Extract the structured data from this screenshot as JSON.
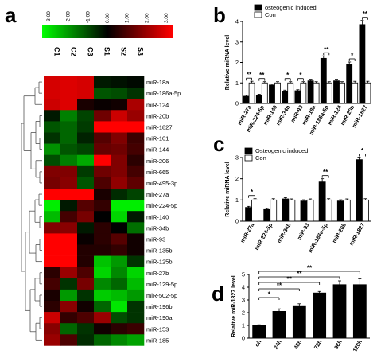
{
  "colors": {
    "low": "#00ff00",
    "mid": "#000000",
    "high": "#ff0000",
    "filled": "#000000",
    "open": "#ffffff"
  },
  "chart_data": [
    {
      "id": "a",
      "type": "heatmap",
      "panel_label": "a",
      "colorbar_ticks": [
        "-3.00",
        "-2.00",
        "-1.00",
        "0.00",
        "1.00",
        "2.00",
        "3.00"
      ],
      "columns": [
        "C1",
        "C2",
        "C3",
        "S1",
        "S2",
        "S3"
      ],
      "rows": [
        "miR-18a",
        "miR-186a-5p",
        "miR-124",
        "miR-20b",
        "miR-1827",
        "miR-101",
        "miR-144",
        "miR-206",
        "miR-665",
        "miR-495-3p",
        "miR-27a",
        "miR-224-5p",
        "miR-140",
        "miR-34b",
        "miR-93",
        "miR-135b",
        "miR-125b",
        "miR-27b",
        "miR-129-5p",
        "miR-502-5p",
        "miR-196b",
        "miR-190a",
        "miR-153",
        "miR-185"
      ],
      "values": [
        [
          2.5,
          2.6,
          2.5,
          -0.3,
          -0.2,
          -0.1
        ],
        [
          2.5,
          2.6,
          2.5,
          -1.0,
          -0.9,
          -0.6
        ],
        [
          2.4,
          2.6,
          0.3,
          0.1,
          0.2,
          2.0
        ],
        [
          -0.3,
          -1.5,
          -0.8,
          1.3,
          2.4,
          1.8
        ],
        [
          -1.0,
          -1.2,
          -0.7,
          3.0,
          3.0,
          3.0
        ],
        [
          -0.6,
          -1.2,
          -0.4,
          1.0,
          1.5,
          0.7
        ],
        [
          -1.7,
          -1.0,
          -0.8,
          1.2,
          1.3,
          0.8
        ],
        [
          -0.9,
          -1.5,
          -2.0,
          3.0,
          1.5,
          0.5
        ],
        [
          1.5,
          1.5,
          -0.7,
          1.3,
          1.5,
          0.8
        ],
        [
          1.4,
          1.6,
          -1.0,
          0.9,
          1.7,
          1.1
        ],
        [
          3.0,
          3.0,
          3.0,
          0.3,
          -0.5,
          -0.8
        ],
        [
          -2.8,
          -0.3,
          1.0,
          0.6,
          -2.8,
          -2.8
        ],
        [
          -2.2,
          0.8,
          1.4,
          0.0,
          -2.5,
          -0.3
        ],
        [
          1.5,
          1.6,
          -0.3,
          0.5,
          0.0,
          -1.3
        ],
        [
          3.0,
          3.0,
          0.1,
          0.5,
          1.0,
          0.2
        ],
        [
          3.0,
          3.0,
          0.4,
          0.4,
          0.6,
          0.2
        ],
        [
          3.0,
          3.0,
          0.4,
          -2.3,
          -1.8,
          -0.6
        ],
        [
          0.5,
          1.8,
          0.9,
          -2.5,
          -1.6,
          -2.5
        ],
        [
          0.8,
          -0.6,
          1.4,
          -1.6,
          -1.2,
          -2.2
        ],
        [
          0.3,
          -1.8,
          -0.6,
          -2.4,
          -2.2,
          -1.8
        ],
        [
          0.5,
          1.6,
          0.2,
          -1.2,
          -2.7,
          -0.6
        ],
        [
          2.4,
          0.6,
          0.9,
          1.8,
          -0.9,
          -0.6
        ],
        [
          1.6,
          -1.2,
          -0.6,
          0.2,
          0.5,
          0.7
        ],
        [
          1.8,
          0.9,
          -0.5,
          -1.2,
          -1.6,
          -1.9
        ]
      ]
    },
    {
      "id": "b",
      "type": "bar",
      "panel_label": "b",
      "ylabel": "Relative miRNA level",
      "ylim": [
        0,
        4
      ],
      "yticks": [
        0,
        1,
        2,
        3,
        4
      ],
      "categories": [
        "miR-27a",
        "miR-224-5p",
        "miR-140",
        "miR-34b",
        "miR-93",
        "miR-18a",
        "miR-186a-5p",
        "miR-124",
        "miR-20b",
        "miR-1827"
      ],
      "series": [
        {
          "name": "osteogenic induced",
          "style": "filled",
          "values": [
            0.35,
            0.4,
            0.9,
            0.6,
            0.62,
            1.1,
            2.2,
            1.1,
            1.9,
            3.85
          ],
          "errors": [
            0.05,
            0.05,
            0.05,
            0.05,
            0.05,
            0.08,
            0.12,
            0.08,
            0.12,
            0.2
          ]
        },
        {
          "name": "Con",
          "style": "open",
          "values": [
            1.0,
            1.0,
            1.0,
            1.0,
            1.0,
            1.0,
            1.0,
            1.0,
            1.0,
            1.0
          ],
          "errors": [
            0.08,
            0.06,
            0.06,
            0.06,
            0.06,
            0.06,
            0.06,
            0.06,
            0.08,
            0.08
          ]
        }
      ],
      "significance": [
        "**",
        "**",
        "",
        "*",
        "*",
        "",
        "**",
        "",
        "*",
        "**"
      ],
      "legend_position": "top-right"
    },
    {
      "id": "c",
      "type": "bar",
      "panel_label": "c",
      "ylabel": "Relative miRNA level",
      "ylim": [
        0,
        3
      ],
      "yticks": [
        0,
        1,
        2,
        3
      ],
      "categories": [
        "miR-27a",
        "miR-224-5p",
        "miR-34b",
        "miR-93",
        "miR-186a-5p",
        "miR-20b",
        "miR-1827"
      ],
      "series": [
        {
          "name": "Osteogenic induced",
          "style": "filled",
          "values": [
            0.65,
            0.55,
            1.05,
            0.95,
            1.85,
            0.95,
            2.9
          ],
          "errors": [
            0.05,
            0.05,
            0.06,
            0.06,
            0.15,
            0.06,
            0.12
          ]
        },
        {
          "name": "Con",
          "style": "open",
          "values": [
            1.0,
            1.0,
            1.0,
            1.0,
            1.0,
            1.0,
            1.0
          ],
          "errors": [
            0.06,
            0.06,
            0.05,
            0.05,
            0.06,
            0.05,
            0.06
          ]
        }
      ],
      "significance": [
        "*",
        "",
        "",
        "",
        "**",
        "",
        "*"
      ],
      "legend_position": "top-left"
    },
    {
      "id": "d",
      "type": "bar",
      "panel_label": "d",
      "ylabel": "Relative miR-1827 level",
      "ylim": [
        0,
        5
      ],
      "yticks": [
        0,
        1,
        2,
        3,
        4,
        5
      ],
      "categories": [
        "oh",
        "24h",
        "48h",
        "72h",
        "96h",
        "120h"
      ],
      "series": [
        {
          "name": "",
          "style": "filled",
          "values": [
            1.0,
            2.1,
            2.55,
            3.55,
            4.2,
            4.2
          ],
          "errors": [
            0.05,
            0.2,
            0.15,
            0.12,
            0.3,
            0.45
          ]
        }
      ],
      "comparisons": [
        {
          "from": 0,
          "to": 1,
          "label": "*"
        },
        {
          "from": 0,
          "to": 2,
          "label": "**"
        },
        {
          "from": 0,
          "to": 3,
          "label": "**"
        },
        {
          "from": 0,
          "to": 4,
          "label": "**"
        },
        {
          "from": 0,
          "to": 5,
          "label": "**"
        }
      ]
    }
  ]
}
